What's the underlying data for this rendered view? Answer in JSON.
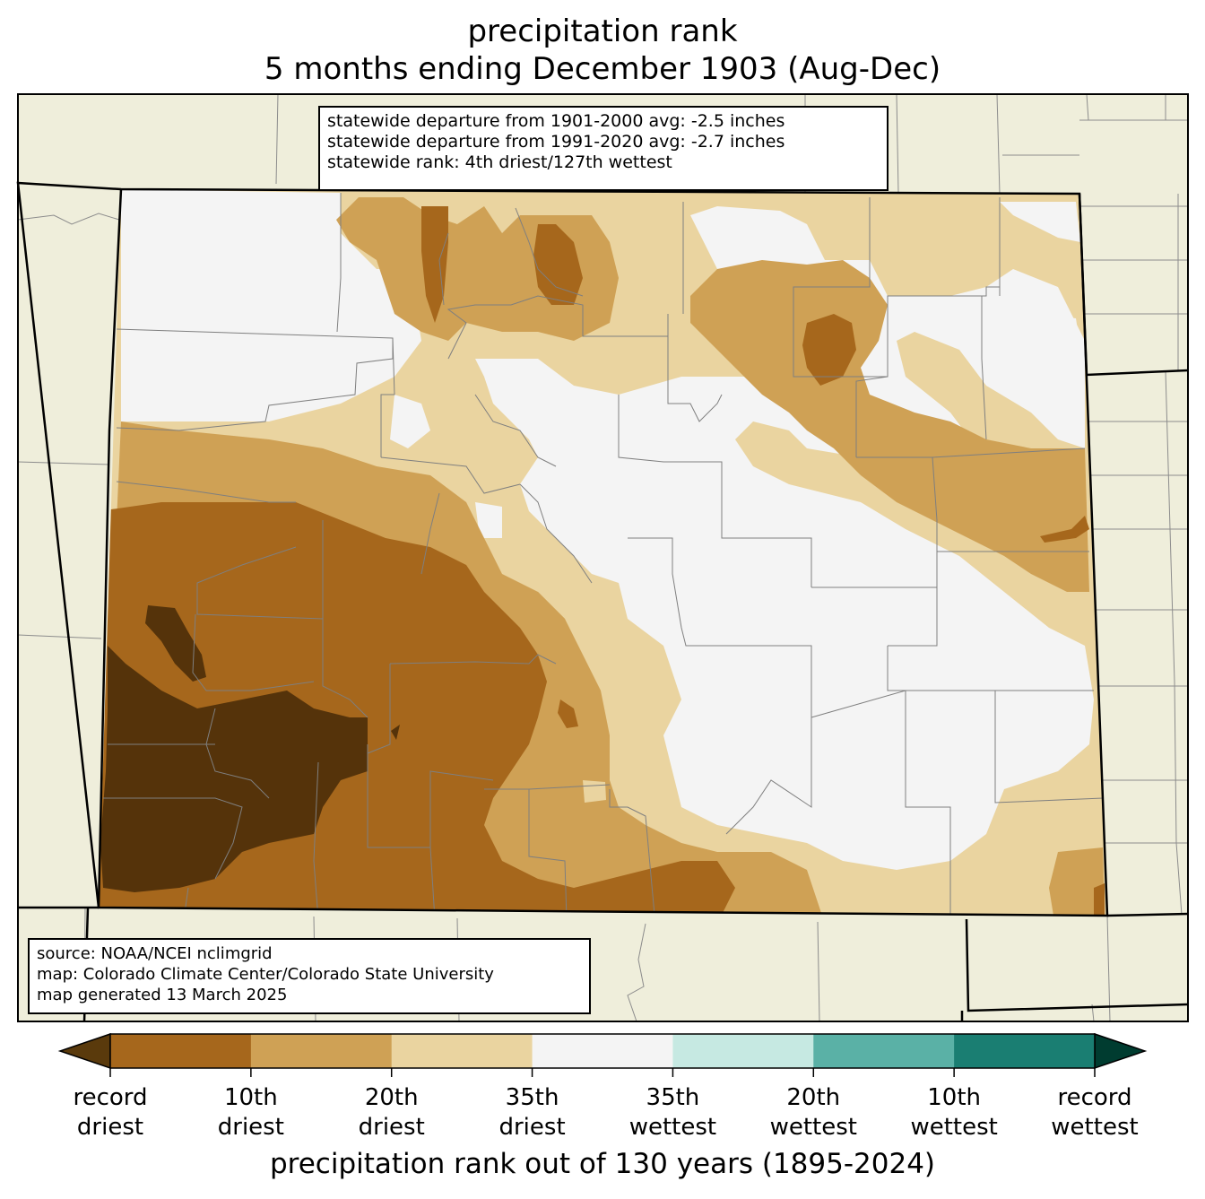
{
  "title": "precipitation rank",
  "subtitle": "5 months ending December 1903 (Aug-Dec)",
  "stats": [
    "statewide departure from 1901-2000 avg: -2.5 inches",
    "statewide departure from 1991-2020 avg: -2.7 inches",
    "statewide rank: 4th driest/127th wettest"
  ],
  "credits": [
    "source: NOAA/NCEI nclimgrid",
    "map: Colorado Climate Center/Colorado State University",
    "map generated 13 March 2025"
  ],
  "colorbar": {
    "title": "precipitation rank out of 130 years (1895-2024)",
    "under_color": "#5a3a0c",
    "over_color": "#003c30",
    "bins": [
      "#a6671c",
      "#cfa155",
      "#ead4a0",
      "#f4f4f4",
      "#c6e9e2",
      "#5ab1a6",
      "#1a7e72"
    ],
    "ticks": [
      {
        "line1": "record",
        "line2": "driest"
      },
      {
        "line1": "10th",
        "line2": "driest"
      },
      {
        "line1": "20th",
        "line2": "driest"
      },
      {
        "line1": "35th",
        "line2": "driest"
      },
      {
        "line1": "35th",
        "line2": "wettest"
      },
      {
        "line1": "20th",
        "line2": "wettest"
      },
      {
        "line1": "10th",
        "line2": "wettest"
      },
      {
        "line1": "record",
        "line2": "wettest"
      }
    ]
  },
  "colors": {
    "background_land": "#efeedb",
    "record_driest": "#55330a",
    "tenth_driest": "#a6671c",
    "twentieth_driest": "#cfa155",
    "thirtyfifth_driest": "#ead4a0",
    "near_normal": "#f4f4f4"
  }
}
